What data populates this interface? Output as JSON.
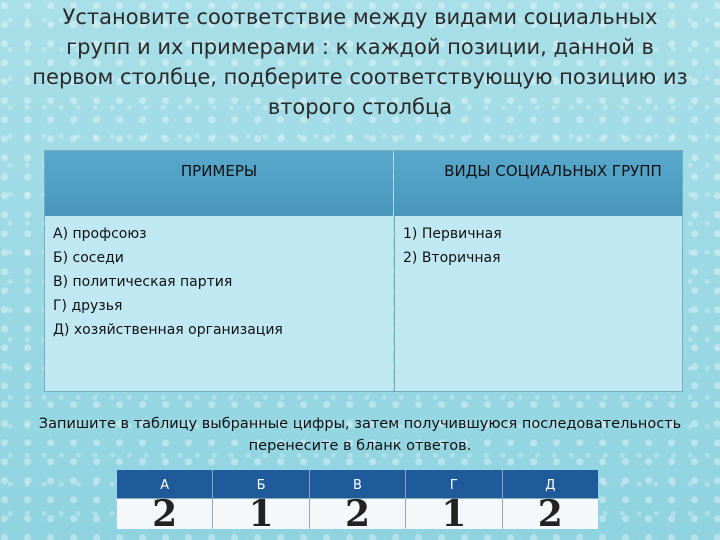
{
  "title_lines": [
    "Установите соответствие между  видами социальных",
    "групп и их примерами : к каждой позиции, данной в",
    "первом столбце, подберите соответствующую позицию из",
    "второго столбца"
  ],
  "table": {
    "headers": [
      "ПРИМЕРЫ",
      "ВИДЫ СОЦИАЛЬНЫХ ГРУПП"
    ],
    "examples": [
      "А) профсоюз",
      "Б) соседи",
      "В) политическая партия",
      "Г) друзья",
      "Д) хозяйственная организация"
    ],
    "groups": [
      "1)   Первичная",
      "2)   Вторичная"
    ]
  },
  "instruction": "Запишите в таблицу выбранные цифры, затем получившуюся последовательность перенесите в бланк ответов.",
  "answer": {
    "headers": [
      "А",
      "Б",
      "В",
      "Г",
      "Д"
    ],
    "values": [
      "2",
      "1",
      "2",
      "1",
      "2"
    ]
  }
}
